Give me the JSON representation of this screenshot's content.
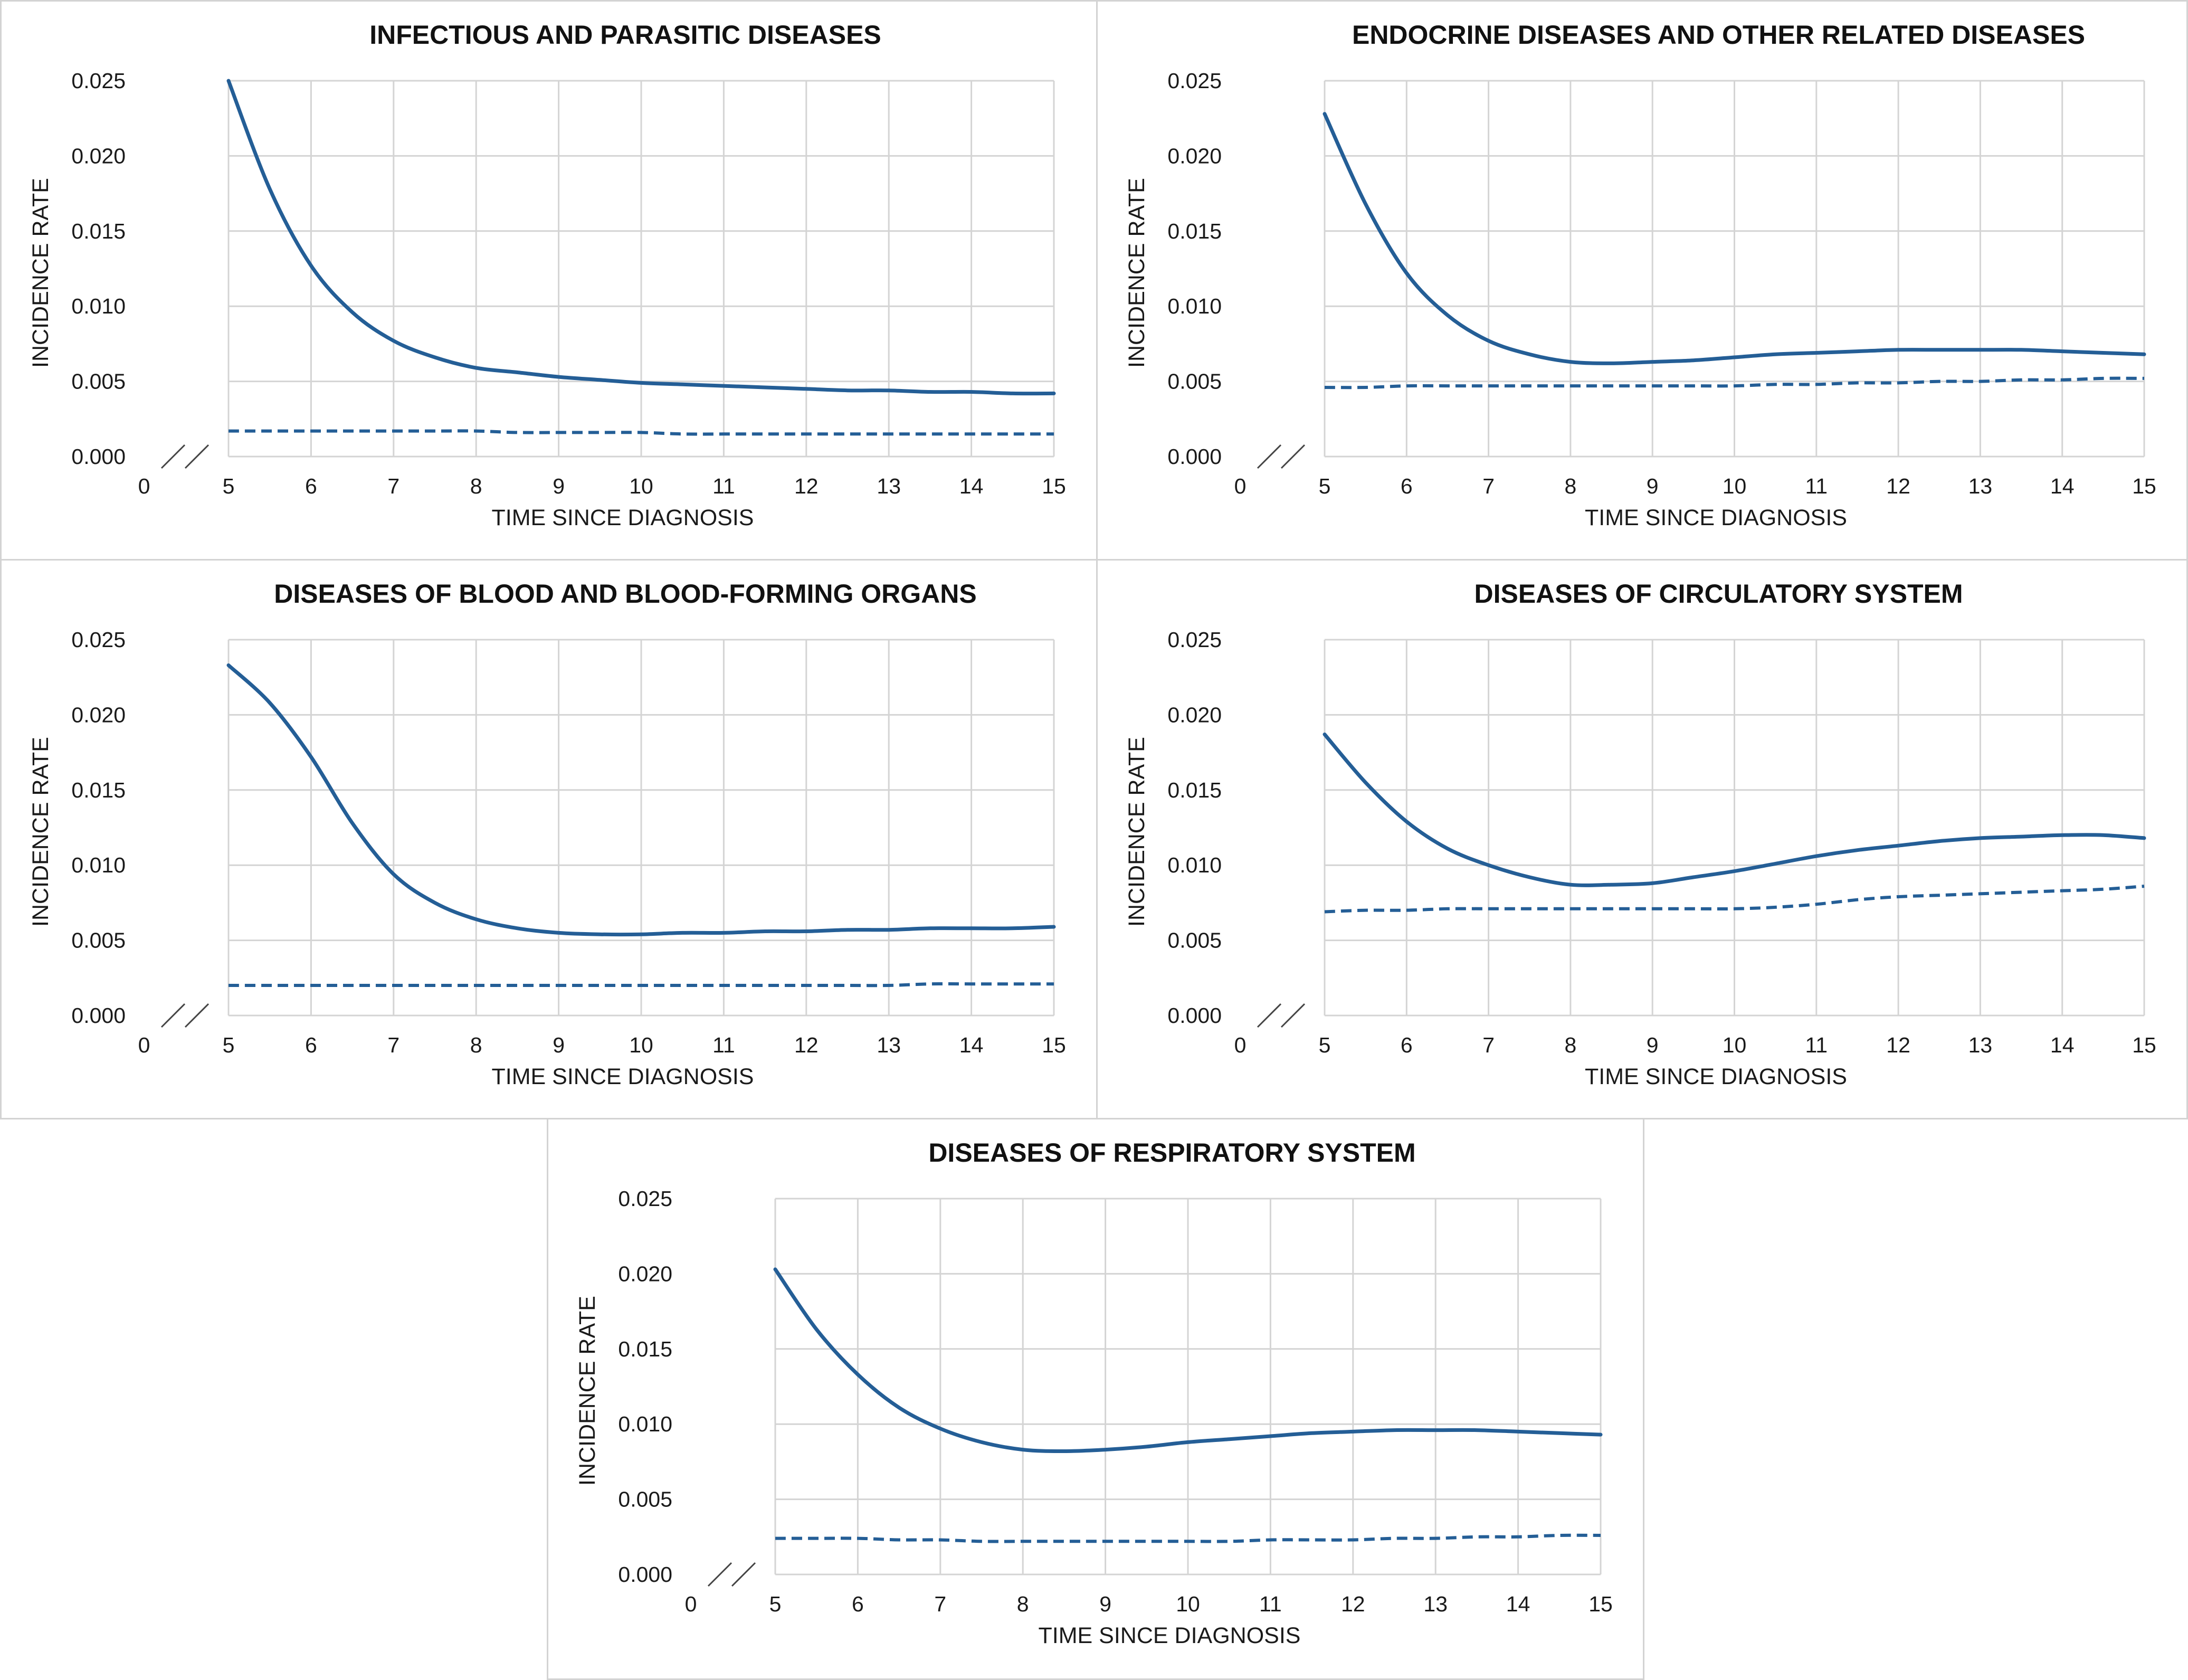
{
  "chart_data": [
    {
      "type": "line",
      "title": "INFECTIOUS AND PARASITIC DISEASES",
      "xlabel": "TIME SINCE DIAGNOSIS",
      "ylabel": "INCIDENCE RATE",
      "xticks": [
        "0",
        "5",
        "6",
        "7",
        "8",
        "9",
        "10",
        "11",
        "12",
        "13",
        "14",
        "15"
      ],
      "yticks": [
        "0.000",
        "0.005",
        "0.010",
        "0.015",
        "0.020",
        "0.025"
      ],
      "xlim": [
        5,
        15
      ],
      "ylim": [
        0,
        0.025
      ],
      "grid": true,
      "axis_break": true,
      "x": [
        5,
        5.5,
        6,
        6.5,
        7,
        7.5,
        8,
        8.5,
        9,
        9.5,
        10,
        10.5,
        11,
        11.5,
        12,
        12.5,
        13,
        13.5,
        14,
        14.5,
        15
      ],
      "series": [
        {
          "name": "solid",
          "values": [
            0.025,
            0.0178,
            0.0127,
            0.0096,
            0.0077,
            0.0066,
            0.0059,
            0.0056,
            0.0053,
            0.0051,
            0.0049,
            0.0048,
            0.0047,
            0.0046,
            0.0045,
            0.0044,
            0.0044,
            0.0043,
            0.0043,
            0.0042,
            0.0042
          ]
        },
        {
          "name": "dashed",
          "values": [
            0.0017,
            0.0017,
            0.0017,
            0.0017,
            0.0017,
            0.0017,
            0.0017,
            0.0016,
            0.0016,
            0.0016,
            0.0016,
            0.0015,
            0.0015,
            0.0015,
            0.0015,
            0.0015,
            0.0015,
            0.0015,
            0.0015,
            0.0015,
            0.0015
          ]
        }
      ]
    },
    {
      "type": "line",
      "title": "ENDOCRINE DISEASES AND OTHER RELATED DISEASES",
      "xlabel": "TIME SINCE DIAGNOSIS",
      "ylabel": "INCIDENCE RATE",
      "xticks": [
        "0",
        "5",
        "6",
        "7",
        "8",
        "9",
        "10",
        "11",
        "12",
        "13",
        "14",
        "15"
      ],
      "yticks": [
        "0.000",
        "0.005",
        "0.010",
        "0.015",
        "0.020",
        "0.025"
      ],
      "xlim": [
        5,
        15
      ],
      "ylim": [
        0,
        0.025
      ],
      "grid": true,
      "axis_break": true,
      "x": [
        5,
        5.5,
        6,
        6.5,
        7,
        7.5,
        8,
        8.5,
        9,
        9.5,
        10,
        10.5,
        11,
        11.5,
        12,
        12.5,
        13,
        13.5,
        14,
        14.5,
        15
      ],
      "series": [
        {
          "name": "solid",
          "values": [
            0.0228,
            0.0168,
            0.0122,
            0.0094,
            0.0077,
            0.0068,
            0.0063,
            0.0062,
            0.0063,
            0.0064,
            0.0066,
            0.0068,
            0.0069,
            0.007,
            0.0071,
            0.0071,
            0.0071,
            0.0071,
            0.007,
            0.0069,
            0.0068
          ]
        },
        {
          "name": "dashed",
          "values": [
            0.0046,
            0.0046,
            0.0047,
            0.0047,
            0.0047,
            0.0047,
            0.0047,
            0.0047,
            0.0047,
            0.0047,
            0.0047,
            0.0048,
            0.0048,
            0.0049,
            0.0049,
            0.005,
            0.005,
            0.0051,
            0.0051,
            0.0052,
            0.0052
          ]
        }
      ]
    },
    {
      "type": "line",
      "title": "DISEASES OF BLOOD AND BLOOD-FORMING ORGANS",
      "xlabel": "TIME SINCE DIAGNOSIS",
      "ylabel": "INCIDENCE RATE",
      "xticks": [
        "0",
        "5",
        "6",
        "7",
        "8",
        "9",
        "10",
        "11",
        "12",
        "13",
        "14",
        "15"
      ],
      "yticks": [
        "0.000",
        "0.005",
        "0.010",
        "0.015",
        "0.020",
        "0.025"
      ],
      "xlim": [
        5,
        15
      ],
      "ylim": [
        0,
        0.025
      ],
      "grid": true,
      "axis_break": true,
      "x": [
        5,
        5.5,
        6,
        6.5,
        7,
        7.5,
        8,
        8.5,
        9,
        9.5,
        10,
        10.5,
        11,
        11.5,
        12,
        12.5,
        13,
        13.5,
        14,
        14.5,
        15
      ],
      "series": [
        {
          "name": "solid",
          "values": [
            0.0233,
            0.0208,
            0.0172,
            0.0128,
            0.0094,
            0.0075,
            0.0064,
            0.0058,
            0.0055,
            0.0054,
            0.0054,
            0.0055,
            0.0055,
            0.0056,
            0.0056,
            0.0057,
            0.0057,
            0.0058,
            0.0058,
            0.0058,
            0.0059
          ]
        },
        {
          "name": "dashed",
          "values": [
            0.002,
            0.002,
            0.002,
            0.002,
            0.002,
            0.002,
            0.002,
            0.002,
            0.002,
            0.002,
            0.002,
            0.002,
            0.002,
            0.002,
            0.002,
            0.002,
            0.002,
            0.0021,
            0.0021,
            0.0021,
            0.0021
          ]
        }
      ]
    },
    {
      "type": "line",
      "title": "DISEASES OF CIRCULATORY SYSTEM",
      "xlabel": "TIME SINCE DIAGNOSIS",
      "ylabel": "INCIDENCE RATE",
      "xticks": [
        "0",
        "5",
        "6",
        "7",
        "8",
        "9",
        "10",
        "11",
        "12",
        "13",
        "14",
        "15"
      ],
      "yticks": [
        "0.000",
        "0.005",
        "0.010",
        "0.015",
        "0.020",
        "0.025"
      ],
      "xlim": [
        5,
        15
      ],
      "ylim": [
        0,
        0.025
      ],
      "grid": true,
      "axis_break": true,
      "x": [
        5,
        5.5,
        6,
        6.5,
        7,
        7.5,
        8,
        8.5,
        9,
        9.5,
        10,
        10.5,
        11,
        11.5,
        12,
        12.5,
        13,
        13.5,
        14,
        14.5,
        15
      ],
      "series": [
        {
          "name": "solid",
          "values": [
            0.0187,
            0.0155,
            0.0129,
            0.0111,
            0.01,
            0.0092,
            0.0087,
            0.0087,
            0.0088,
            0.0092,
            0.0096,
            0.0101,
            0.0106,
            0.011,
            0.0113,
            0.0116,
            0.0118,
            0.0119,
            0.012,
            0.012,
            0.0118
          ]
        },
        {
          "name": "dashed",
          "values": [
            0.0069,
            0.007,
            0.007,
            0.0071,
            0.0071,
            0.0071,
            0.0071,
            0.0071,
            0.0071,
            0.0071,
            0.0071,
            0.0072,
            0.0074,
            0.0077,
            0.0079,
            0.008,
            0.0081,
            0.0082,
            0.0083,
            0.0084,
            0.0086
          ]
        }
      ]
    },
    {
      "type": "line",
      "title": "DISEASES OF RESPIRATORY SYSTEM",
      "xlabel": "TIME SINCE DIAGNOSIS",
      "ylabel": "INCIDENCE RATE",
      "xticks": [
        "0",
        "5",
        "6",
        "7",
        "8",
        "9",
        "10",
        "11",
        "12",
        "13",
        "14",
        "15"
      ],
      "yticks": [
        "0.000",
        "0.005",
        "0.010",
        "0.015",
        "0.020",
        "0.025"
      ],
      "xlim": [
        5,
        15
      ],
      "ylim": [
        0,
        0.025
      ],
      "grid": true,
      "axis_break": true,
      "x": [
        5,
        5.5,
        6,
        6.5,
        7,
        7.5,
        8,
        8.5,
        9,
        9.5,
        10,
        10.5,
        11,
        11.5,
        12,
        12.5,
        13,
        13.5,
        14,
        14.5,
        15
      ],
      "series": [
        {
          "name": "solid",
          "values": [
            0.0203,
            0.0163,
            0.0133,
            0.0111,
            0.0097,
            0.0088,
            0.0083,
            0.0082,
            0.0083,
            0.0085,
            0.0088,
            0.009,
            0.0092,
            0.0094,
            0.0095,
            0.0096,
            0.0096,
            0.0096,
            0.0095,
            0.0094,
            0.0093
          ]
        },
        {
          "name": "dashed",
          "values": [
            0.0024,
            0.0024,
            0.0024,
            0.0023,
            0.0023,
            0.0022,
            0.0022,
            0.0022,
            0.0022,
            0.0022,
            0.0022,
            0.0022,
            0.0023,
            0.0023,
            0.0023,
            0.0024,
            0.0024,
            0.0025,
            0.0025,
            0.0026,
            0.0026
          ]
        }
      ]
    }
  ]
}
